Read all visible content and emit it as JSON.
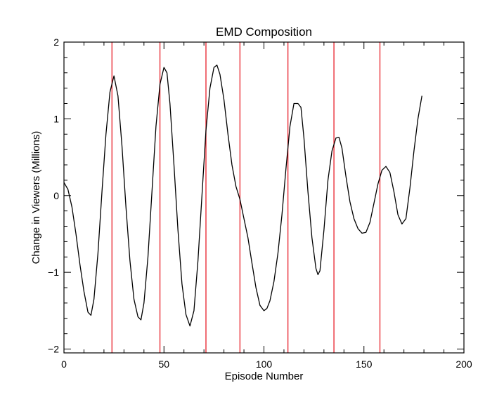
{
  "chart_data": {
    "type": "line",
    "title": "EMD Composition",
    "xlabel": "Episode Number",
    "ylabel": "Change in Viewers (Millions)",
    "xlim": [
      0,
      200
    ],
    "ylim": [
      -2.05,
      2.0
    ],
    "x_ticks": [
      0,
      50,
      100,
      150,
      200
    ],
    "x_tick_labels": [
      "0",
      "50",
      "100",
      "150",
      "200"
    ],
    "y_ticks": [
      -2,
      -1,
      0,
      1,
      2
    ],
    "y_tick_labels": [
      "−2",
      "−1",
      "0",
      "1",
      "2"
    ],
    "grid": false,
    "legend": "none",
    "vertical_lines": [
      24,
      48,
      71,
      88,
      112,
      135,
      158
    ],
    "colors": {
      "line": "#000000",
      "markers": "#e8202a",
      "axes": "#000000"
    },
    "series": [
      {
        "x": [
          0,
          2,
          4,
          6,
          8,
          10,
          12,
          13.5,
          15,
          17,
          19,
          21,
          23,
          25,
          27,
          29,
          31,
          33,
          35,
          37,
          38.5,
          40,
          42,
          44,
          46,
          48,
          50,
          51.5,
          53,
          55,
          57,
          59,
          61,
          63,
          65,
          67,
          69,
          71,
          73,
          75,
          76.5,
          78,
          80,
          82,
          84,
          86,
          88,
          90,
          92,
          94,
          96,
          98,
          100,
          101.5,
          103,
          105,
          107,
          109,
          111,
          113,
          115,
          117,
          118.5,
          120,
          122,
          124,
          126,
          127,
          128,
          130,
          132,
          134,
          136,
          137.5,
          139,
          141,
          143,
          145,
          147,
          149,
          151,
          153,
          155,
          157,
          159,
          161,
          163,
          165,
          167,
          169,
          171,
          173,
          175,
          177,
          179
        ],
        "y": [
          0.17,
          0.08,
          -0.15,
          -0.5,
          -0.9,
          -1.25,
          -1.52,
          -1.56,
          -1.35,
          -0.75,
          0.05,
          0.8,
          1.35,
          1.56,
          1.3,
          0.65,
          -0.15,
          -0.85,
          -1.35,
          -1.58,
          -1.62,
          -1.4,
          -0.8,
          0.05,
          0.9,
          1.45,
          1.67,
          1.6,
          1.2,
          0.4,
          -0.45,
          -1.15,
          -1.55,
          -1.7,
          -1.5,
          -0.85,
          0.0,
          0.85,
          1.4,
          1.67,
          1.7,
          1.58,
          1.25,
          0.8,
          0.4,
          0.12,
          -0.05,
          -0.3,
          -0.55,
          -0.88,
          -1.2,
          -1.43,
          -1.5,
          -1.47,
          -1.37,
          -1.12,
          -0.75,
          -0.25,
          0.35,
          0.9,
          1.2,
          1.2,
          1.15,
          0.75,
          0.05,
          -0.55,
          -0.95,
          -1.03,
          -0.98,
          -0.45,
          0.2,
          0.58,
          0.75,
          0.76,
          0.62,
          0.25,
          -0.08,
          -0.3,
          -0.43,
          -0.49,
          -0.48,
          -0.35,
          -0.1,
          0.15,
          0.33,
          0.38,
          0.3,
          0.05,
          -0.25,
          -0.37,
          -0.3,
          0.1,
          0.58,
          1.0,
          1.3
        ]
      }
    ]
  }
}
